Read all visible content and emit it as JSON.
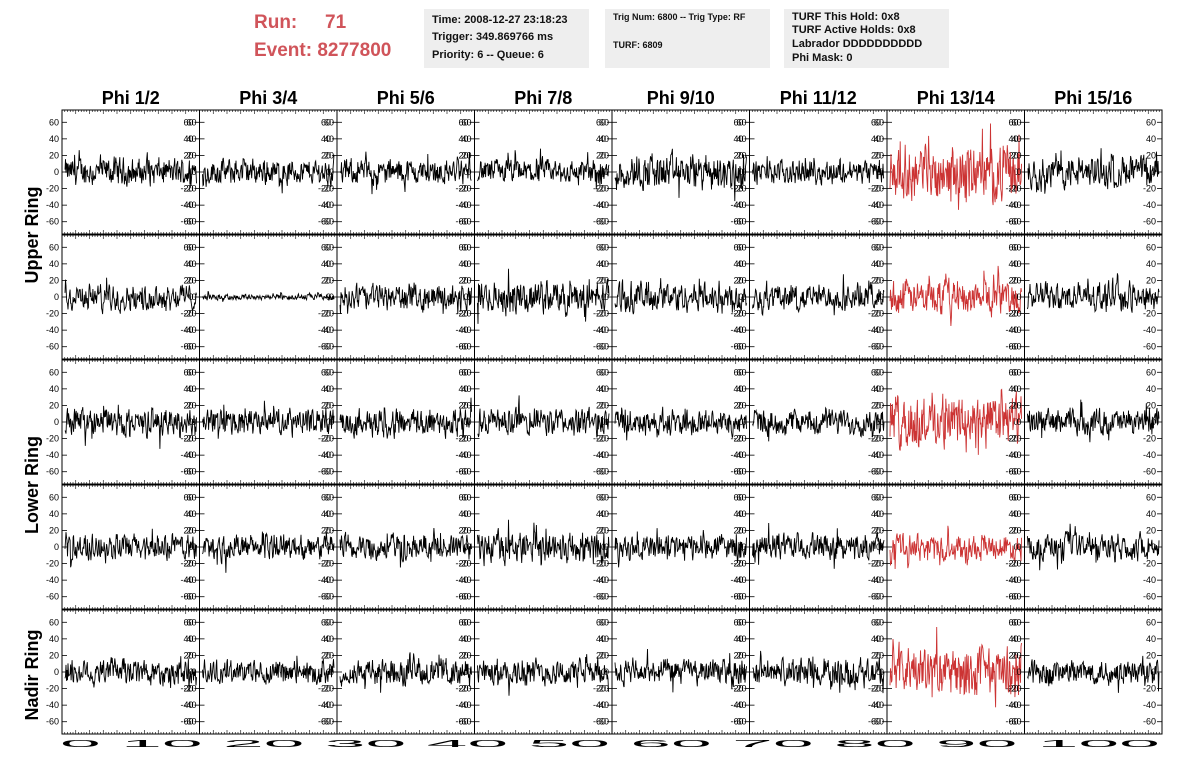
{
  "header": {
    "run_label": "Run:",
    "run_value": "71",
    "event_label": "Event:",
    "event_value": "8277800",
    "accent_color": "#d0545a"
  },
  "info": {
    "time": "Time: 2008-12-27 23:18:23",
    "trigger": "Trigger: 349.869766 ms",
    "priority": "Priority: 6 -- Queue: 6",
    "trig_num": "Trig Num: 6800 -- Trig Type: RF",
    "turf": "TURF: 6809",
    "turf_this_hold": "TURF This Hold: 0x8",
    "turf_active_holds": "TURF Active Holds: 0x8",
    "labrador": "Labrador DDDDDDDDDD",
    "phi_mask": "Phi Mask: 0"
  },
  "chart_data": {
    "type": "line",
    "columns": [
      "Phi 1/2",
      "Phi 3/4",
      "Phi 5/6",
      "Phi 7/8",
      "Phi 9/10",
      "Phi 11/12",
      "Phi 13/14",
      "Phi 15/16"
    ],
    "rows": [
      "Upper Ring",
      "Upper Ring",
      "Lower Ring",
      "Lower Ring",
      "Nadir Ring"
    ],
    "row_labels": [
      "Upper Ring",
      "Lower Ring",
      "Nadir Ring"
    ],
    "ylim": [
      -70,
      70
    ],
    "yticks": [
      -60,
      -40,
      -20,
      0,
      20,
      40,
      60
    ],
    "xlim": [
      0,
      100
    ],
    "xticks_label": "0 10 20 30 40 50 60 70 80 90 100",
    "triggered_column": "Phi 13/14",
    "triggered_color": "#cc3333",
    "normal_color": "#000000",
    "samples_per_panel": 260,
    "amplitude": [
      [
        13,
        12,
        12,
        12,
        17,
        11,
        25,
        15
      ],
      [
        12,
        3,
        12,
        15,
        14,
        12,
        16,
        13
      ],
      [
        13,
        12,
        13,
        13,
        12,
        12,
        25,
        12
      ],
      [
        12,
        12,
        12,
        15,
        12,
        12,
        12,
        12
      ],
      [
        13,
        11,
        12,
        12,
        12,
        13,
        23,
        12
      ]
    ]
  }
}
